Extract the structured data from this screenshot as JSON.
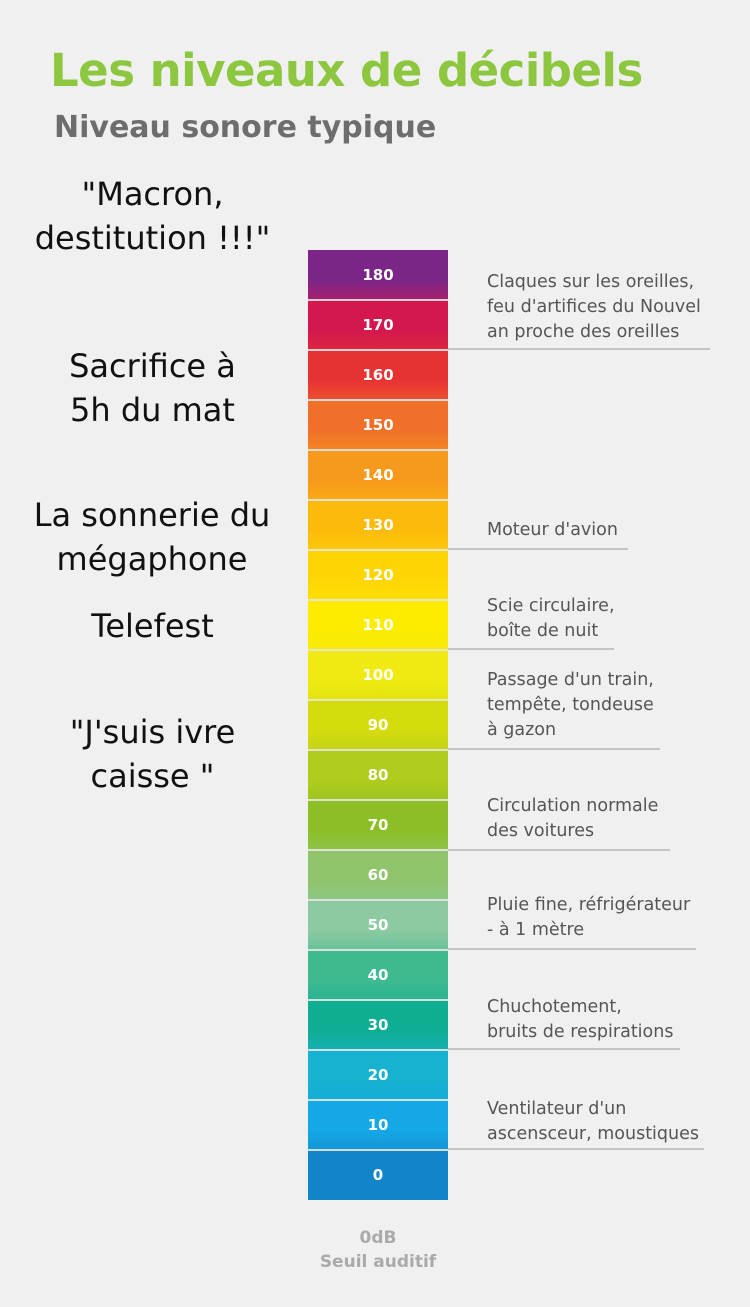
{
  "title": "Les niveaux de décibels",
  "subtitle": "Niveau sonore typique",
  "left_labels": [
    {
      "text": "\"Macron,\ndestitution !!!\""
    },
    {
      "text": "Sacrifice à\n5h du mat"
    },
    {
      "text": "La sonnerie du\nmégaphone"
    },
    {
      "text": "Telefest"
    },
    {
      "text": "\"J'suis ivre\ncaisse \""
    }
  ],
  "scale": [
    {
      "value": "180",
      "color": "#7b2589"
    },
    {
      "value": "170",
      "color": "#d4174f"
    },
    {
      "value": "160",
      "color": "#e73234"
    },
    {
      "value": "150",
      "color": "#f0702a"
    },
    {
      "value": "140",
      "color": "#f7991c"
    },
    {
      "value": "130",
      "color": "#fcbb0c"
    },
    {
      "value": "120",
      "color": "#ffd506"
    },
    {
      "value": "110",
      "color": "#fdeb00"
    },
    {
      "value": "100",
      "color": "#f0ea12"
    },
    {
      "value": "90",
      "color": "#d5dc0d"
    },
    {
      "value": "80",
      "color": "#b0cc1c"
    },
    {
      "value": "70",
      "color": "#8cbf26"
    },
    {
      "value": "60",
      "color": "#8fc46a"
    },
    {
      "value": "50",
      "color": "#8dcaa2"
    },
    {
      "value": "40",
      "color": "#3fba8f"
    },
    {
      "value": "30",
      "color": "#0fae92"
    },
    {
      "value": "20",
      "color": "#16b2d0"
    },
    {
      "value": "10",
      "color": "#14a8e6"
    },
    {
      "value": "0",
      "color": "#1285c8"
    }
  ],
  "descriptions": [
    {
      "text": "Claques sur les oreilles,\nfeu d'artifices du Nouvel\nan proche des oreilles"
    },
    {
      "text": "Moteur d'avion"
    },
    {
      "text": "Scie circulaire,\nboîte de nuit"
    },
    {
      "text": "Passage d'un train,\ntempête, tondeuse\nà gazon"
    },
    {
      "text": "Circulation normale\ndes voitures"
    },
    {
      "text": "Pluie fine, réfrigérateur\n- à 1 mètre"
    },
    {
      "text": "Chuchotement,\nbruits de respirations"
    },
    {
      "text": "Ventilateur d'un\nascensceur, moustiques"
    }
  ],
  "bottom": {
    "value": "0dB",
    "label": "Seuil auditif"
  },
  "colors": {
    "title": "#8dc63f",
    "subtitle": "#6d6d6d",
    "lines": "#c4c4c4"
  }
}
